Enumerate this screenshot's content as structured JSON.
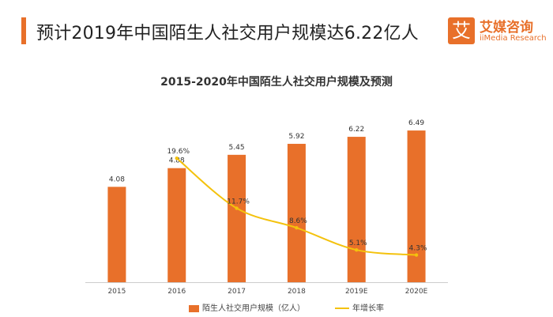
{
  "header": {
    "headline": "预计2019年中国陌生人社交用户规模达6.22亿人",
    "brand_cn": "艾媒咨询",
    "brand_en": "iiMedia Research",
    "brand_glyph": "艾"
  },
  "colors": {
    "bar": "#e8702a",
    "line": "#f4c20d",
    "accent": "#e8702a"
  },
  "chart_data": {
    "type": "bar",
    "title": "2015-2020年中国陌生人社交用户规模及预测",
    "categories": [
      "2015",
      "2016",
      "2017",
      "2018",
      "2019E",
      "2020E"
    ],
    "ylim": [
      0,
      7
    ],
    "series": [
      {
        "name": "陌生人社交用户规模（亿人）",
        "type": "bar",
        "values": [
          4.08,
          4.88,
          5.45,
          5.92,
          6.22,
          6.49
        ],
        "labels": [
          "4.08",
          "4.88",
          "5.45",
          "5.92",
          "6.22",
          "6.49"
        ]
      },
      {
        "name": "年增长率",
        "type": "line",
        "axis": "secondary",
        "values": [
          null,
          19.6,
          11.7,
          8.6,
          5.1,
          4.3
        ],
        "labels": [
          "",
          "19.6%",
          "11.7%",
          "8.6%",
          "5.1%",
          "4.3%"
        ],
        "ylim": [
          0,
          25
        ]
      }
    ],
    "grid": false,
    "legend": "bottom"
  }
}
